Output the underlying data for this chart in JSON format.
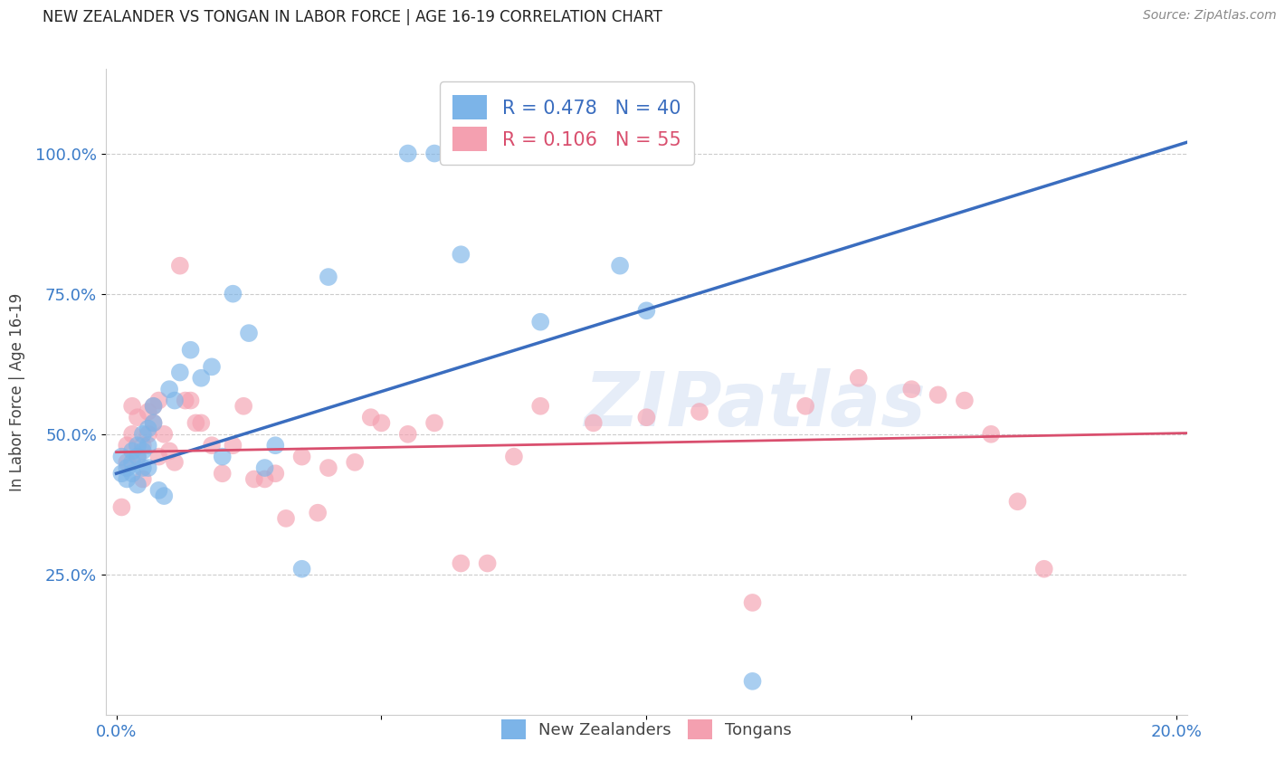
{
  "title": "NEW ZEALANDER VS TONGAN IN LABOR FORCE | AGE 16-19 CORRELATION CHART",
  "source": "Source: ZipAtlas.com",
  "ylabel": "In Labor Force | Age 16-19",
  "xlim": [
    -0.002,
    0.202
  ],
  "ylim": [
    0.0,
    1.15
  ],
  "yticks": [
    0.25,
    0.5,
    0.75,
    1.0
  ],
  "ytick_labels": [
    "25.0%",
    "50.0%",
    "75.0%",
    "100.0%"
  ],
  "xticks": [
    0.0,
    0.05,
    0.1,
    0.15,
    0.2
  ],
  "xtick_labels": [
    "0.0%",
    "",
    "",
    "",
    "20.0%"
  ],
  "nz_color": "#7cb4e8",
  "tongan_color": "#f4a0b0",
  "nz_line_color": "#3a6dbf",
  "tongan_line_color": "#d94f6e",
  "R_nz": 0.478,
  "N_nz": 40,
  "R_tongan": 0.106,
  "N_tongan": 55,
  "legend_label_nz": "New Zealanders",
  "legend_label_tongan": "Tongans",
  "watermark": "ZIPatlas",
  "nz_line_x0": 0.0,
  "nz_line_y0": 0.43,
  "nz_line_x1": 0.202,
  "nz_line_y1": 1.02,
  "tongan_line_x0": 0.0,
  "tongan_line_y0": 0.468,
  "tongan_line_x1": 0.202,
  "tongan_line_y1": 0.502,
  "nz_x": [
    0.001,
    0.001,
    0.002,
    0.002,
    0.003,
    0.003,
    0.003,
    0.004,
    0.004,
    0.004,
    0.005,
    0.005,
    0.005,
    0.006,
    0.006,
    0.006,
    0.007,
    0.007,
    0.008,
    0.009,
    0.01,
    0.011,
    0.012,
    0.014,
    0.016,
    0.018,
    0.02,
    0.022,
    0.025,
    0.028,
    0.03,
    0.035,
    0.04,
    0.055,
    0.06,
    0.065,
    0.08,
    0.095,
    0.1,
    0.12
  ],
  "nz_y": [
    0.43,
    0.46,
    0.44,
    0.42,
    0.47,
    0.45,
    0.43,
    0.48,
    0.46,
    0.41,
    0.5,
    0.47,
    0.44,
    0.51,
    0.48,
    0.44,
    0.55,
    0.52,
    0.4,
    0.39,
    0.58,
    0.56,
    0.61,
    0.65,
    0.6,
    0.62,
    0.46,
    0.75,
    0.68,
    0.44,
    0.48,
    0.26,
    0.78,
    1.0,
    1.0,
    0.82,
    0.7,
    0.8,
    0.72,
    0.06
  ],
  "tongan_x": [
    0.001,
    0.002,
    0.002,
    0.003,
    0.003,
    0.004,
    0.004,
    0.005,
    0.005,
    0.006,
    0.006,
    0.007,
    0.007,
    0.008,
    0.008,
    0.009,
    0.01,
    0.011,
    0.012,
    0.013,
    0.014,
    0.015,
    0.016,
    0.018,
    0.02,
    0.022,
    0.024,
    0.026,
    0.028,
    0.03,
    0.032,
    0.035,
    0.038,
    0.04,
    0.045,
    0.048,
    0.05,
    0.055,
    0.06,
    0.065,
    0.07,
    0.075,
    0.08,
    0.09,
    0.1,
    0.11,
    0.12,
    0.13,
    0.14,
    0.15,
    0.155,
    0.16,
    0.165,
    0.17,
    0.175
  ],
  "tongan_y": [
    0.37,
    0.45,
    0.48,
    0.5,
    0.55,
    0.53,
    0.46,
    0.48,
    0.42,
    0.54,
    0.5,
    0.55,
    0.52,
    0.56,
    0.46,
    0.5,
    0.47,
    0.45,
    0.8,
    0.56,
    0.56,
    0.52,
    0.52,
    0.48,
    0.43,
    0.48,
    0.55,
    0.42,
    0.42,
    0.43,
    0.35,
    0.46,
    0.36,
    0.44,
    0.45,
    0.53,
    0.52,
    0.5,
    0.52,
    0.27,
    0.27,
    0.46,
    0.55,
    0.52,
    0.53,
    0.54,
    0.2,
    0.55,
    0.6,
    0.58,
    0.57,
    0.56,
    0.5,
    0.38,
    0.26
  ]
}
